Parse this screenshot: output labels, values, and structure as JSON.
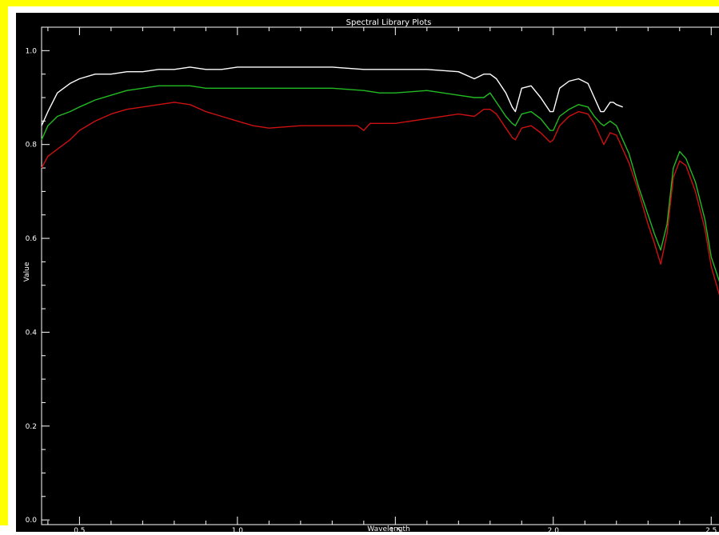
{
  "window": {
    "frame_color": "#ffff00"
  },
  "chart_data": {
    "type": "line",
    "title": "Spectral Library Plots",
    "xlabel": "Wavelength",
    "ylabel": "Value",
    "xlim": [
      0.38,
      2.55
    ],
    "ylim": [
      -0.01,
      1.05
    ],
    "xticks": [
      0.5,
      1.0,
      1.5,
      2.0,
      2.5
    ],
    "xtick_labels": [
      "0.5",
      "1.0",
      "1.5",
      "2.0",
      "2.5"
    ],
    "yticks": [
      0.0,
      0.2,
      0.4,
      0.6,
      0.8,
      1.0
    ],
    "ytick_labels": [
      "0.0",
      "0.2",
      "0.4",
      "0.6",
      "0.8",
      "1.0"
    ],
    "grid": false,
    "background": "#000000",
    "axis_color": "#ffffff",
    "series": [
      {
        "color": "#ffffff",
        "x": [
          0.38,
          0.4,
          0.43,
          0.47,
          0.5,
          0.55,
          0.6,
          0.65,
          0.7,
          0.75,
          0.8,
          0.85,
          0.9,
          0.95,
          1.0,
          1.1,
          1.2,
          1.3,
          1.4,
          1.5,
          1.6,
          1.7,
          1.75,
          1.78,
          1.8,
          1.82,
          1.85,
          1.87,
          1.88,
          1.9,
          1.93,
          1.96,
          1.99,
          2.0,
          2.02,
          2.05,
          2.08,
          2.11,
          2.13,
          2.15,
          2.16,
          2.18,
          2.19,
          2.2,
          2.22
        ],
        "y": [
          0.84,
          0.87,
          0.91,
          0.93,
          0.94,
          0.95,
          0.95,
          0.955,
          0.955,
          0.96,
          0.96,
          0.965,
          0.96,
          0.96,
          0.965,
          0.965,
          0.965,
          0.965,
          0.96,
          0.96,
          0.96,
          0.955,
          0.94,
          0.95,
          0.95,
          0.94,
          0.91,
          0.88,
          0.87,
          0.92,
          0.925,
          0.9,
          0.87,
          0.87,
          0.92,
          0.935,
          0.94,
          0.93,
          0.9,
          0.87,
          0.87,
          0.89,
          0.89,
          0.885,
          0.88
        ]
      },
      {
        "color": "#22bb22",
        "x": [
          0.38,
          0.4,
          0.43,
          0.47,
          0.5,
          0.55,
          0.6,
          0.65,
          0.7,
          0.75,
          0.8,
          0.85,
          0.9,
          0.95,
          1.0,
          1.1,
          1.2,
          1.3,
          1.4,
          1.45,
          1.5,
          1.6,
          1.7,
          1.75,
          1.78,
          1.8,
          1.82,
          1.85,
          1.87,
          1.88,
          1.9,
          1.93,
          1.96,
          1.99,
          2.0,
          2.02,
          2.05,
          2.08,
          2.11,
          2.13,
          2.15,
          2.16,
          2.18,
          2.2,
          2.24,
          2.27,
          2.3,
          2.32,
          2.34,
          2.36,
          2.38,
          2.4,
          2.42,
          2.45,
          2.48,
          2.5,
          2.53,
          2.55
        ],
        "y": [
          0.81,
          0.84,
          0.86,
          0.87,
          0.88,
          0.895,
          0.905,
          0.915,
          0.92,
          0.925,
          0.925,
          0.925,
          0.92,
          0.92,
          0.92,
          0.92,
          0.92,
          0.92,
          0.915,
          0.91,
          0.91,
          0.915,
          0.905,
          0.9,
          0.9,
          0.91,
          0.89,
          0.86,
          0.845,
          0.84,
          0.865,
          0.87,
          0.855,
          0.83,
          0.83,
          0.86,
          0.875,
          0.885,
          0.88,
          0.86,
          0.845,
          0.84,
          0.85,
          0.84,
          0.78,
          0.71,
          0.65,
          0.61,
          0.575,
          0.63,
          0.75,
          0.785,
          0.77,
          0.72,
          0.64,
          0.56,
          0.5,
          0.55
        ]
      },
      {
        "color": "#cc1111",
        "x": [
          0.38,
          0.4,
          0.43,
          0.47,
          0.5,
          0.55,
          0.6,
          0.65,
          0.7,
          0.75,
          0.8,
          0.85,
          0.9,
          0.95,
          1.0,
          1.05,
          1.1,
          1.2,
          1.3,
          1.38,
          1.4,
          1.42,
          1.5,
          1.6,
          1.7,
          1.75,
          1.78,
          1.8,
          1.82,
          1.85,
          1.87,
          1.88,
          1.9,
          1.93,
          1.96,
          1.99,
          2.0,
          2.02,
          2.05,
          2.08,
          2.11,
          2.13,
          2.15,
          2.16,
          2.18,
          2.2,
          2.24,
          2.27,
          2.3,
          2.32,
          2.34,
          2.36,
          2.38,
          2.4,
          2.42,
          2.45,
          2.48,
          2.5,
          2.53,
          2.55
        ],
        "y": [
          0.75,
          0.775,
          0.79,
          0.81,
          0.83,
          0.85,
          0.865,
          0.875,
          0.88,
          0.885,
          0.89,
          0.885,
          0.87,
          0.86,
          0.85,
          0.84,
          0.835,
          0.84,
          0.84,
          0.84,
          0.83,
          0.845,
          0.845,
          0.855,
          0.865,
          0.86,
          0.875,
          0.875,
          0.865,
          0.835,
          0.815,
          0.81,
          0.835,
          0.84,
          0.825,
          0.805,
          0.81,
          0.84,
          0.86,
          0.87,
          0.865,
          0.845,
          0.815,
          0.8,
          0.825,
          0.82,
          0.76,
          0.7,
          0.63,
          0.59,
          0.545,
          0.61,
          0.73,
          0.765,
          0.755,
          0.7,
          0.62,
          0.54,
          0.47,
          0.5
        ]
      }
    ]
  }
}
